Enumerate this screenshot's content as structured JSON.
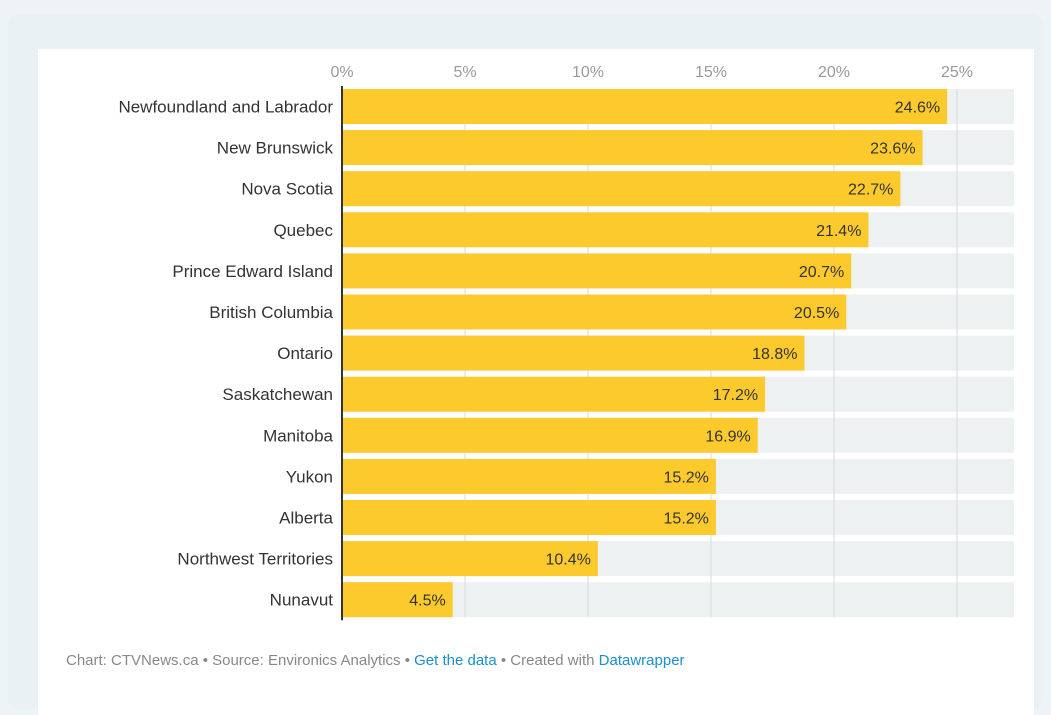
{
  "chart_data": {
    "type": "bar",
    "orientation": "horizontal",
    "categories": [
      "Newfoundland and Labrador",
      "New Brunswick",
      "Nova Scotia",
      "Quebec",
      "Prince Edward Island",
      "British Columbia",
      "Ontario",
      "Saskatchewan",
      "Manitoba",
      "Yukon",
      "Alberta",
      "Northwest Territories",
      "Nunavut"
    ],
    "values": [
      24.6,
      23.6,
      22.7,
      21.4,
      20.7,
      20.5,
      18.8,
      17.2,
      16.9,
      15.2,
      15.2,
      10.4,
      4.5
    ],
    "value_labels": [
      "24.6%",
      "23.6%",
      "22.7%",
      "21.4%",
      "20.7%",
      "20.5%",
      "18.8%",
      "17.2%",
      "16.9%",
      "15.2%",
      "15.2%",
      "10.4%",
      "4.5%"
    ],
    "ticks": [
      0,
      5,
      10,
      15,
      20,
      25
    ],
    "tick_labels": [
      "0%",
      "5%",
      "10%",
      "15%",
      "20%",
      "25%"
    ],
    "xlim": [
      0,
      27
    ],
    "grid": true,
    "bar_color": "#fdca2e",
    "track_color": "#eef1f2",
    "title": "",
    "xlabel": "",
    "ylabel": ""
  },
  "footer": {
    "prefix": "Chart: CTVNews.ca • Source: Environics Analytics • ",
    "get_data": "Get the data",
    "middle": " • Created with ",
    "datawrapper": "Datawrapper"
  }
}
